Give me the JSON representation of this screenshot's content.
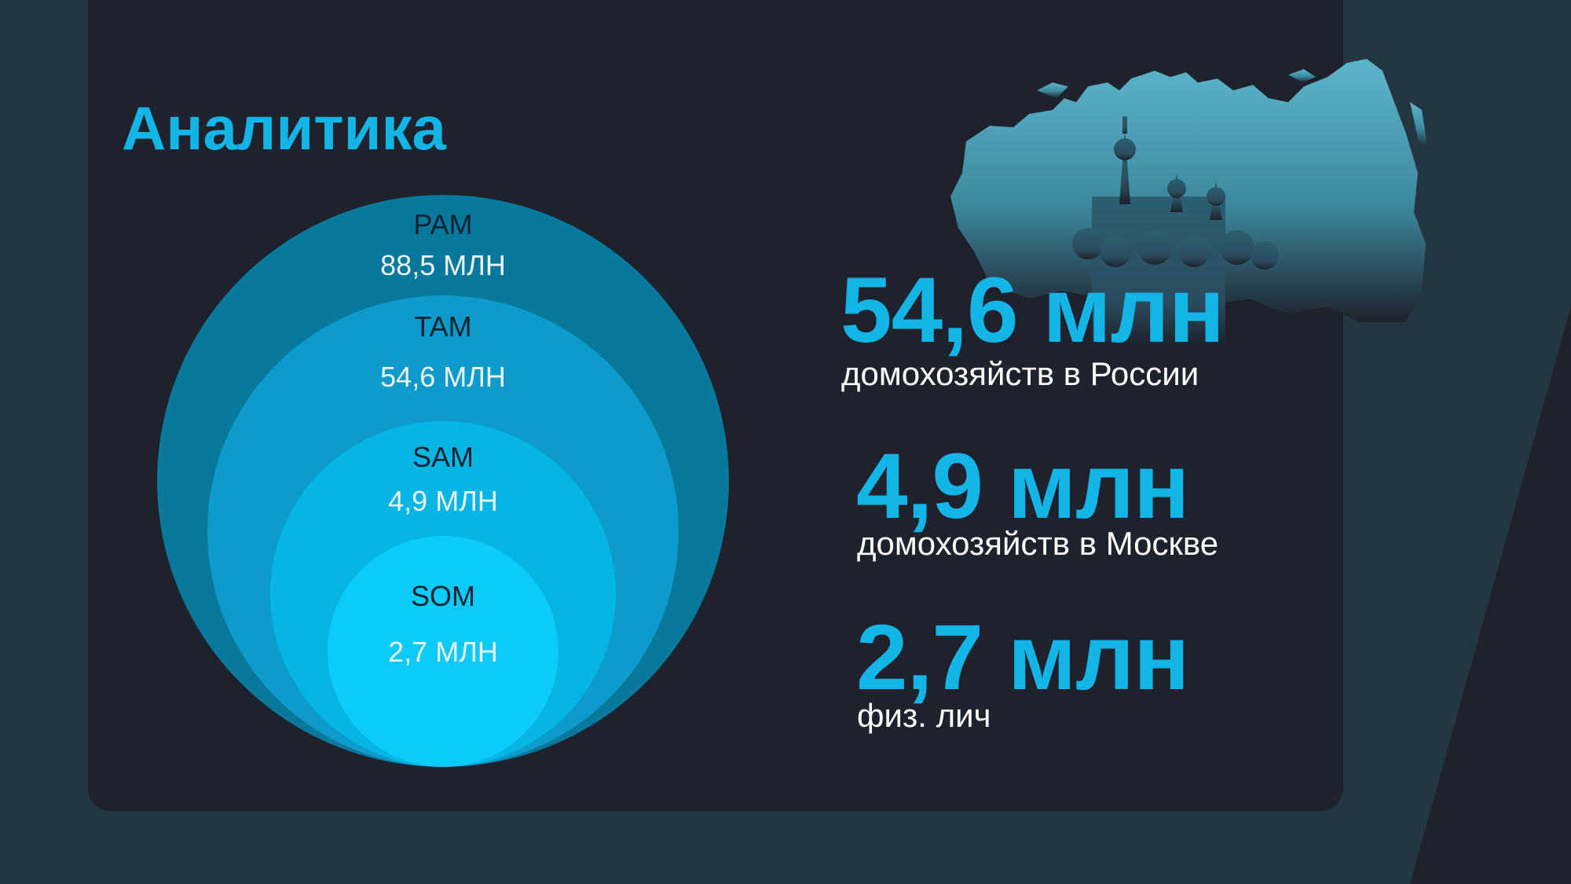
{
  "title": "Аналитика",
  "colors": {
    "accent": "#13b4e6",
    "panel": "#1e222c",
    "background": "#243642",
    "circle_pam": "#08789c",
    "circle_tam": "#0c9bca",
    "circle_sam": "#05b5e4",
    "circle_som": "#0ccbfb"
  },
  "circles": {
    "pam": {
      "name": "PAM",
      "value": "88,5 МЛН"
    },
    "tam": {
      "name": "TAM",
      "value": "54,6 МЛН"
    },
    "sam": {
      "name": "SAM",
      "value": "4,9 МЛН"
    },
    "som": {
      "name": "SOM",
      "value": "2,7 МЛН"
    }
  },
  "stats": [
    {
      "value": "54,6 млн",
      "label": "домохозяйств в России"
    },
    {
      "value": "4,9 млн",
      "label": "домохозяйств в Москве"
    },
    {
      "value": "2,7 млн",
      "label": "физ. лич"
    }
  ],
  "icons": {
    "map": "russia-map-with-kremlin-icon"
  }
}
